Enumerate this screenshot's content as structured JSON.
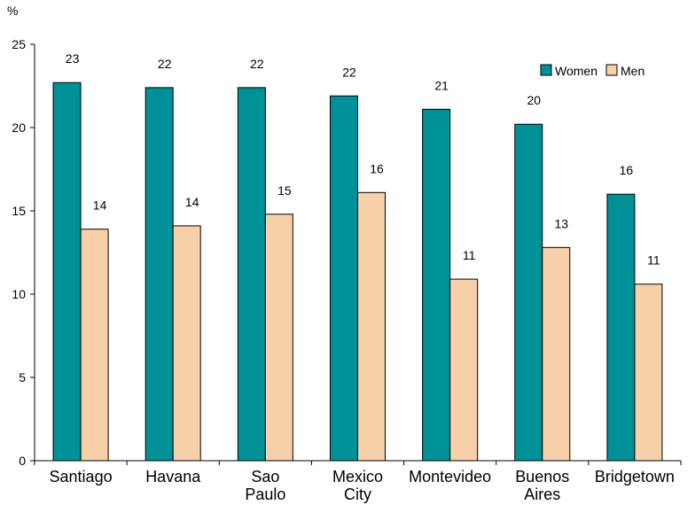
{
  "chart_data": {
    "type": "bar",
    "ylabel": "%",
    "ylim": [
      0,
      25
    ],
    "yticks": [
      0,
      5,
      10,
      15,
      20,
      25
    ],
    "grid": false,
    "legend_position": "top-right",
    "categories": [
      [
        "Santiago"
      ],
      [
        "Havana"
      ],
      [
        "Sao",
        "Paulo"
      ],
      [
        "Mexico",
        "City"
      ],
      [
        "Montevideo"
      ],
      [
        "Buenos",
        "Aires"
      ],
      [
        "Bridgetown"
      ]
    ],
    "series": [
      {
        "name": "Women",
        "color": "#009098",
        "values": [
          22.7,
          22.4,
          22.4,
          21.9,
          21.1,
          20.2,
          16.0
        ],
        "labels": [
          "23",
          "22",
          "22",
          "22",
          "21",
          "20",
          "16"
        ]
      },
      {
        "name": "Men",
        "color": "#F7CFA8",
        "values": [
          13.9,
          14.1,
          14.8,
          16.1,
          10.9,
          12.8,
          10.6
        ],
        "labels": [
          "14",
          "14",
          "15",
          "16",
          "11",
          "13",
          "11"
        ]
      }
    ]
  }
}
